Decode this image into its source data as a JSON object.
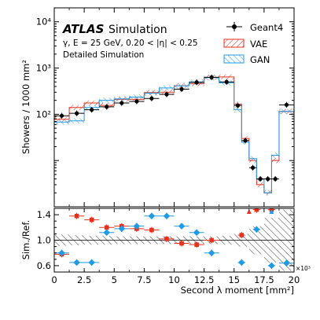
{
  "chart_data": {
    "type": "line",
    "labels": {
      "brand": "ATLAS",
      "title_suffix": "Simulation",
      "condition": "γ, E = 25 GeV, 0.20 < |η| < 0.25",
      "detail": "Detailed Simulation",
      "ylabel_top": "Showers / 1000 mm²",
      "ylabel_ratio": "Sim./Ref.",
      "xlabel": "Second λ moment [mm²]",
      "x_multiplier": "×10³"
    },
    "xlim": [
      0,
      20
    ],
    "ylim_top": [
      1,
      20000
    ],
    "y_scale_top": "log",
    "ylim_ratio": [
      0.5,
      1.5
    ],
    "legend_position": "top-right",
    "x_ticks": [
      "0",
      "2.5",
      "5",
      "7.5",
      "10",
      "12.5",
      "15",
      "17.5",
      "20"
    ],
    "y_ticks_top": [
      {
        "value": 100,
        "label": "10²"
      },
      {
        "value": 1000,
        "label": "10³"
      },
      {
        "value": 10000,
        "label": "10⁴"
      }
    ],
    "y_ticks_ratio": [
      {
        "value": 0.6,
        "label": "0.6"
      },
      {
        "value": 1.0,
        "label": "1.0"
      },
      {
        "value": 1.4,
        "label": "1.4"
      }
    ],
    "bin_edges": [
      0,
      1.25,
      2.5,
      3.75,
      5,
      6.25,
      7.5,
      8.75,
      10,
      11.25,
      12.5,
      13.75,
      15,
      16.25,
      17.5,
      18.75,
      20
    ],
    "bin_edges_top": [
      0,
      1.25,
      2.5,
      3.75,
      5,
      6.25,
      7.5,
      8.75,
      10,
      11.25,
      12.5,
      13.75,
      15,
      15.625,
      16.25,
      16.875,
      17.5,
      18.125,
      18.75,
      20
    ],
    "series": [
      {
        "name": "Geant4",
        "color": "#000000",
        "style": "points",
        "x": [
          0.625,
          1.875,
          3.125,
          4.375,
          5.625,
          6.875,
          8.125,
          9.375,
          10.625,
          11.875,
          13.125,
          14.375,
          15.3125,
          15.9375,
          16.5625,
          17.1875,
          17.8125,
          18.4375,
          19.375
        ],
        "values": [
          93,
          105,
          125,
          145,
          175,
          190,
          220,
          270,
          350,
          490,
          630,
          500,
          155,
          27,
          7,
          4,
          4,
          4,
          160
        ],
        "x_err": [
          0.625,
          0.625,
          0.625,
          0.625,
          0.625,
          0.625,
          0.625,
          0.625,
          0.625,
          0.625,
          0.625,
          0.625,
          0.3125,
          0.3125,
          0.3125,
          0.3125,
          0.3125,
          0.3125,
          0.625
        ]
      },
      {
        "name": "VAE",
        "color": "#e8301c",
        "style": "hatched-step",
        "values": [
          78,
          140,
          175,
          155,
          210,
          210,
          295,
          300,
          415,
          460,
          630,
          640,
          165,
          30,
          10,
          3,
          2,
          10,
          115
        ]
      },
      {
        "name": "GAN",
        "color": "#1f9be6",
        "style": "hatched-step",
        "values": [
          68,
          72,
          140,
          200,
          215,
          235,
          285,
          370,
          410,
          500,
          620,
          480,
          125,
          25,
          11,
          4,
          2,
          13,
          115
        ]
      }
    ],
    "ratio": {
      "band": [
        0.09,
        0.08,
        0.07,
        0.07,
        0.06,
        0.06,
        0.06,
        0.06,
        0.06,
        0.06,
        0.06,
        0.07,
        0.1,
        0.22,
        0.35,
        0.48,
        0.5
      ],
      "series": [
        {
          "name": "VAE",
          "color": "#e8301c",
          "x": [
            0.625,
            1.875,
            3.125,
            4.375,
            5.625,
            6.875,
            8.125,
            9.375,
            10.625,
            11.875,
            13.125,
            15.625,
            16.875,
            18.125
          ],
          "values": [
            0.78,
            1.38,
            1.32,
            1.2,
            1.22,
            1.18,
            1.16,
            1.02,
            0.95,
            0.93,
            1.0,
            1.08,
            1.48,
            1.48
          ]
        },
        {
          "name": "GAN",
          "color": "#1f9be6",
          "x": [
            0.625,
            1.875,
            3.125,
            4.375,
            5.625,
            6.875,
            8.125,
            9.375,
            10.625,
            11.875,
            13.125,
            15.625,
            16.875,
            18.125,
            19.375
          ],
          "values": [
            0.8,
            0.65,
            0.65,
            1.12,
            1.18,
            1.22,
            1.38,
            1.38,
            1.22,
            1.12,
            0.8,
            0.65,
            1.17,
            0.6,
            0.64
          ]
        }
      ]
    }
  }
}
